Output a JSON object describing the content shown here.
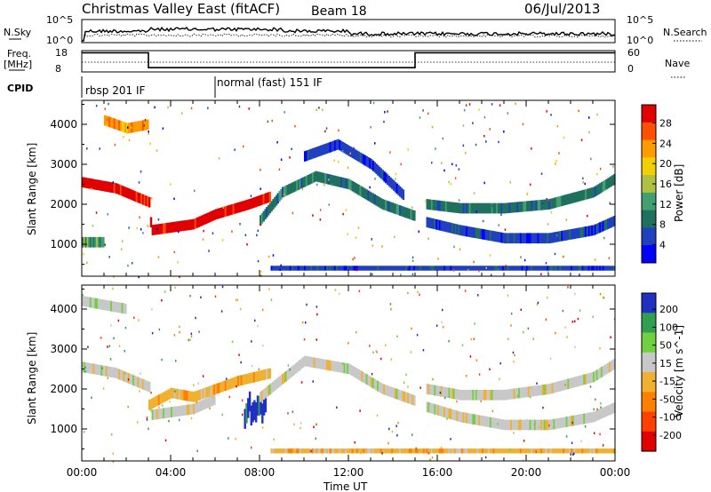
{
  "header": {
    "title": "Christmas Valley East (fitACF)",
    "beam": "Beam 18",
    "date": "06/Jul/2013"
  },
  "top_panels": {
    "nsky_label": "N.Sky",
    "nsky_ticks": [
      "10^5",
      "10^0"
    ],
    "nsearch_label": "N.Search",
    "nsearch_ticks": [
      "10^5",
      "10^0"
    ],
    "freq_label_1": "Freq.",
    "freq_label_2": "[MHz]",
    "freq_ticks": [
      "18",
      "8"
    ],
    "nave_label": "Nave",
    "nave_ticks": [
      "60",
      "0"
    ],
    "cpid_label": "CPID",
    "cpid_segments": [
      "rbsp 201 IF",
      "normal (fast) 151 IF"
    ]
  },
  "power_colorbar": {
    "label": "Power [dB]",
    "ticks": [
      "28",
      "24",
      "20",
      "16",
      "12",
      "8",
      "4"
    ],
    "colors": [
      "#e00000",
      "#ff5000",
      "#ff9a00",
      "#f0d000",
      "#b0c040",
      "#40a070",
      "#207060",
      "#2040c0",
      "#0000ff"
    ]
  },
  "velocity_colorbar": {
    "label": "Velocity [m s^-1]",
    "ticks": [
      "200",
      "100",
      "50",
      "15",
      "-15",
      "-50",
      "-100",
      "-200"
    ],
    "colors": [
      "#2030c0",
      "#30a050",
      "#70d040",
      "#c8c8c8",
      "#f0b030",
      "#ff8000",
      "#ff4000",
      "#e00000"
    ]
  },
  "chart_data": [
    {
      "type": "heatmap",
      "name": "power",
      "ylabel": "Slant Range [km]",
      "yticks": [
        1000,
        2000,
        3000,
        4000
      ],
      "ylim": [
        200,
        4600
      ],
      "xlim": [
        0,
        24
      ],
      "features": [
        {
          "kind": "band",
          "t": [
            0.0,
            1.5,
            3.0,
            3.1,
            5.0,
            6.0,
            7.5,
            8.5
          ],
          "r": [
            2550,
            2400,
            2050,
            1350,
            1500,
            1750,
            2000,
            2200
          ],
          "color_index": 0
        },
        {
          "kind": "band",
          "t": [
            0.0,
            1.0
          ],
          "r": [
            1050,
            1050
          ],
          "color_index": 5
        },
        {
          "kind": "band",
          "t": [
            8.0,
            9.0,
            10.5,
            12.0,
            13.5,
            15.0
          ],
          "r": [
            1600,
            2300,
            2700,
            2500,
            2000,
            1700
          ],
          "color_index": 6
        },
        {
          "kind": "band",
          "t": [
            10.0,
            11.5,
            13.0,
            14.5
          ],
          "r": [
            3200,
            3500,
            3000,
            2200
          ],
          "color_index": 7
        },
        {
          "kind": "band",
          "t": [
            15.5,
            17.0,
            19.0,
            21.0,
            23.0,
            24.0
          ],
          "r": [
            2000,
            1900,
            1900,
            2000,
            2300,
            2650
          ],
          "color_index": 6
        },
        {
          "kind": "band",
          "t": [
            15.5,
            17.0,
            19.0,
            21.0,
            23.0,
            24.0
          ],
          "r": [
            1550,
            1350,
            1150,
            1150,
            1350,
            1600
          ],
          "color_index": 7
        },
        {
          "kind": "band",
          "t": [
            1.0,
            2.0,
            3.0
          ],
          "r": [
            4100,
            3900,
            4000
          ],
          "color_index": 2
        },
        {
          "kind": "ground",
          "t": [
            8.5,
            24.0
          ],
          "r": [
            400,
            400
          ],
          "color_index": 7
        }
      ]
    },
    {
      "type": "heatmap",
      "name": "velocity",
      "xlabel": "Time UT",
      "ylabel": "Slant Range [km]",
      "xticks": [
        "00:00",
        "04:00",
        "08:00",
        "12:00",
        "16:00",
        "20:00",
        "00:00"
      ],
      "yticks": [
        1000,
        2000,
        3000,
        4000
      ],
      "ylim": [
        200,
        4600
      ],
      "xlim": [
        0,
        24
      ],
      "features": [
        {
          "kind": "band",
          "t": [
            0.0,
            1.5,
            3.0,
            3.1,
            5.0,
            6.0
          ],
          "r": [
            2550,
            2400,
            2050,
            1350,
            1500,
            1750
          ],
          "color_index": 3
        },
        {
          "kind": "band",
          "t": [
            3.0,
            4.0,
            5.0,
            6.0,
            7.0,
            8.5
          ],
          "r": [
            1600,
            1900,
            1800,
            2000,
            2200,
            2400
          ],
          "color_index": 4
        },
        {
          "kind": "blob",
          "t": [
            7.3,
            8.3
          ],
          "r": [
            1200,
            1700
          ],
          "color_index": 0
        },
        {
          "kind": "band",
          "t": [
            8.0,
            10.0,
            12.0,
            13.5,
            15.0
          ],
          "r": [
            1800,
            2700,
            2500,
            2000,
            1700
          ],
          "color_index": 3
        },
        {
          "kind": "band",
          "t": [
            15.5,
            17.0,
            19.0,
            21.0,
            23.0,
            24.0
          ],
          "r": [
            2000,
            1850,
            1850,
            2000,
            2300,
            2650
          ],
          "color_index": 3
        },
        {
          "kind": "band",
          "t": [
            15.5,
            17.0,
            19.0,
            21.0,
            23.0,
            24.0
          ],
          "r": [
            1550,
            1300,
            1100,
            1100,
            1300,
            1550
          ],
          "color_index": 3
        },
        {
          "kind": "band",
          "t": [
            0.0,
            2.0
          ],
          "r": [
            4200,
            4000
          ],
          "color_index": 3
        },
        {
          "kind": "ground",
          "t": [
            8.5,
            24.0
          ],
          "r": [
            450,
            450
          ],
          "color_index": 4
        }
      ]
    }
  ],
  "freq_series": {
    "t": [
      0,
      3.0,
      3.0,
      15.0,
      15.0,
      24
    ],
    "mhz": [
      17,
      17,
      10,
      10,
      17,
      17
    ]
  },
  "cpid_change_time": 6.0
}
